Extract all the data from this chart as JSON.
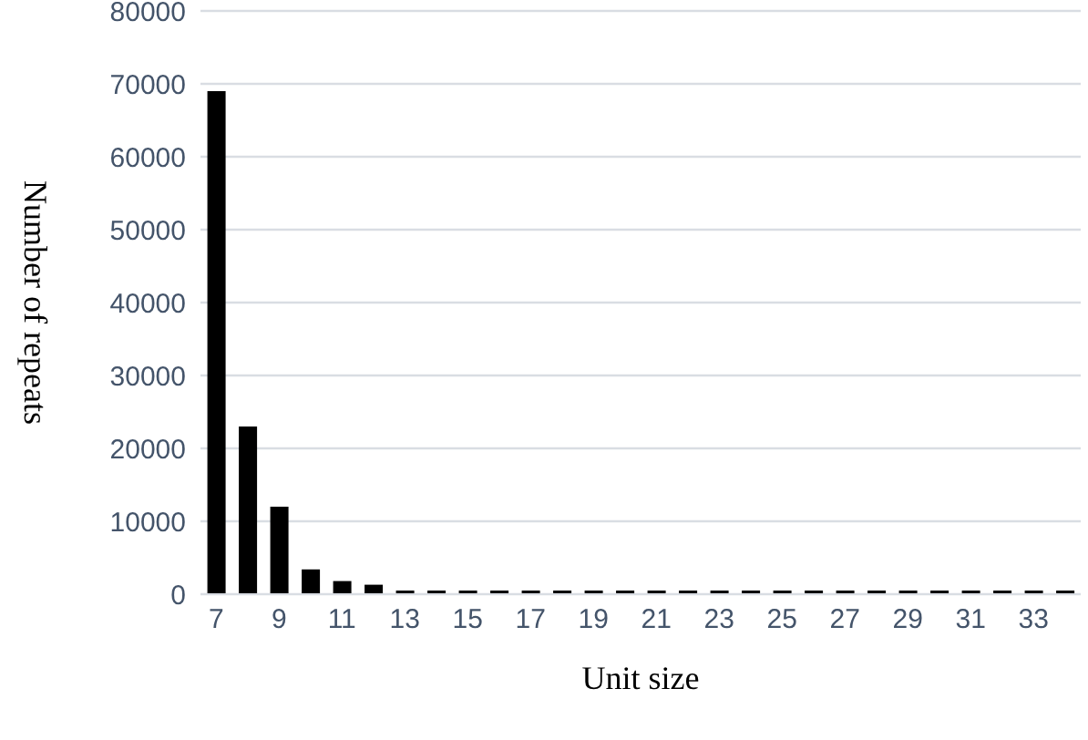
{
  "chart_data": {
    "type": "bar",
    "xlabel": "Unit size",
    "ylabel": "Number of repeats",
    "categories": [
      "7",
      null,
      "9",
      null,
      "11",
      null,
      "13",
      null,
      "15",
      null,
      "17",
      null,
      "19",
      null,
      "21",
      null,
      "23",
      null,
      "25",
      null,
      "27",
      null,
      "29",
      null,
      "31",
      null,
      "33",
      null
    ],
    "values": [
      69000,
      23000,
      12000,
      3400,
      1800,
      1300,
      500,
      500,
      500,
      500,
      500,
      500,
      500,
      500,
      500,
      500,
      500,
      500,
      500,
      500,
      500,
      500,
      500,
      500,
      500,
      500,
      500,
      500
    ],
    "color": "#000000",
    "ylim": [
      0,
      80000
    ],
    "yticks": [
      0,
      10000,
      20000,
      30000,
      40000,
      50000,
      60000,
      70000,
      80000
    ],
    "grid": "y"
  }
}
